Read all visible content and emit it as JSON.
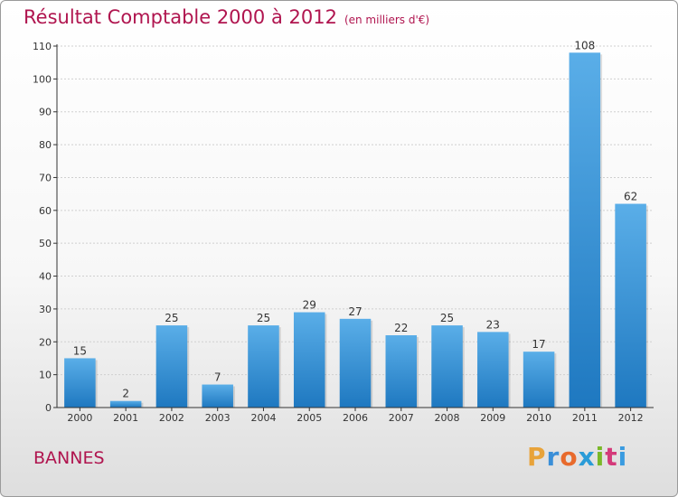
{
  "header": {
    "title": "Résultat Comptable 2000 à 2012",
    "subtitle": "(en milliers d'€)"
  },
  "footer": {
    "place": "BANNES",
    "logo_letters": [
      "P",
      "r",
      "o",
      "x",
      "i",
      "t",
      "i"
    ],
    "logo_colors": [
      "#e8a33a",
      "#3a8fd8",
      "#e86a2c",
      "#2a9cd8",
      "#7ab829",
      "#d43a7a",
      "#3a9be0"
    ]
  },
  "colors": {
    "bar_light": "#5aaee8",
    "bar_dark": "#1e78c0",
    "axis": "#333333",
    "grid": "#d0d0d0",
    "label": "#333333"
  },
  "chart_data": {
    "type": "bar",
    "title": "Résultat Comptable 2000 à 2012",
    "subtitle": "(en milliers d'€)",
    "xlabel": "",
    "ylabel": "",
    "categories": [
      "2000",
      "2001",
      "2002",
      "2003",
      "2004",
      "2005",
      "2006",
      "2007",
      "2008",
      "2009",
      "2010",
      "2011",
      "2012"
    ],
    "values": [
      15,
      2,
      25,
      7,
      25,
      29,
      27,
      22,
      25,
      23,
      17,
      108,
      62
    ],
    "ylim": [
      0,
      110
    ],
    "yticks": [
      0,
      10,
      20,
      30,
      40,
      50,
      60,
      70,
      80,
      90,
      100,
      110
    ],
    "grid": true,
    "legend": "none"
  }
}
